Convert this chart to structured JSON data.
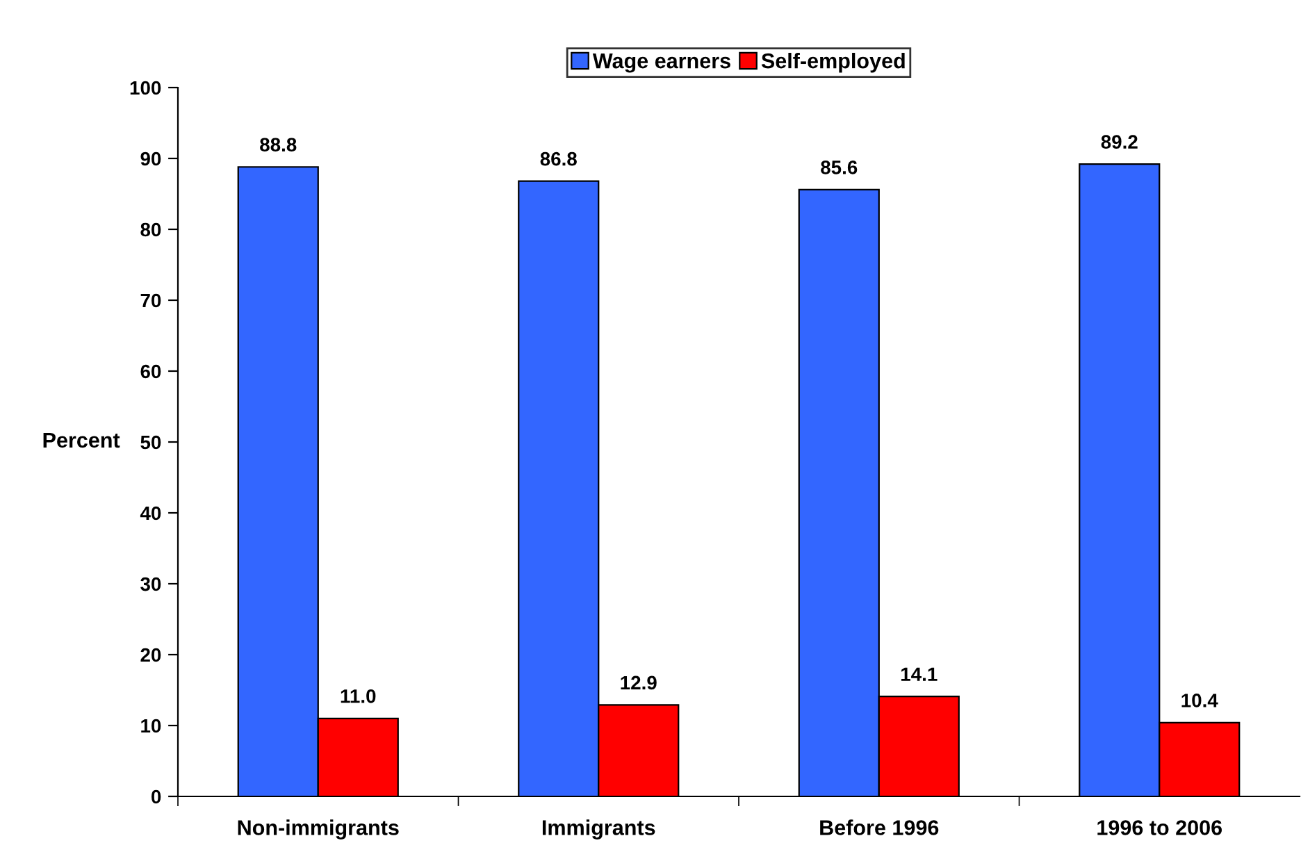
{
  "chart_data": {
    "type": "bar",
    "ylabel": "Percent",
    "categories": [
      "Non-immigrants",
      "Immigrants",
      "Before 1996",
      "1996 to 2006"
    ],
    "series": [
      {
        "name": "Wage earners",
        "color": "#3366ff",
        "values": [
          88.8,
          86.8,
          85.6,
          89.2
        ]
      },
      {
        "name": "Self-employed",
        "color": "#ff0000",
        "values": [
          11.0,
          12.9,
          14.1,
          10.4
        ]
      }
    ],
    "value_labels": [
      [
        "88.8",
        "86.8",
        "85.6",
        "89.2"
      ],
      [
        "11.0",
        "12.9",
        "14.1",
        "10.4"
      ]
    ],
    "ylim": [
      0,
      100
    ],
    "yticks": [
      0,
      10,
      20,
      30,
      40,
      50,
      60,
      70,
      80,
      90,
      100
    ],
    "grid": false,
    "legend": "top"
  }
}
